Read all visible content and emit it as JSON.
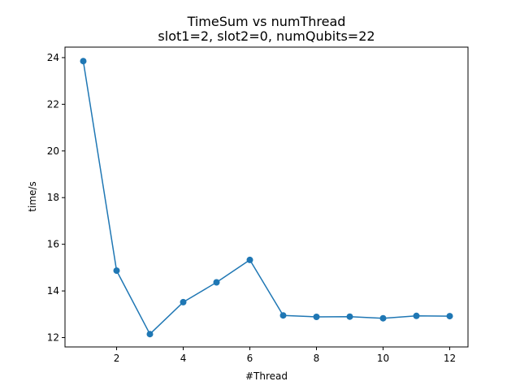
{
  "chart_data": {
    "type": "line",
    "title": "TimeSum vs numThread",
    "subtitle": "slot1=2, slot2=0, numQubits=22",
    "xlabel": "#Thread",
    "ylabel": "time/s",
    "xlim": [
      0.45,
      12.55
    ],
    "ylim": [
      11.6,
      24.45
    ],
    "xticks": [
      2,
      4,
      6,
      8,
      10,
      12
    ],
    "yticks": [
      12,
      14,
      16,
      18,
      20,
      22,
      24
    ],
    "grid": false,
    "marker": "circle",
    "color": "#1f77b4",
    "series": [
      {
        "x": [
          1,
          2,
          3,
          4,
          5,
          6,
          7,
          8,
          9,
          10,
          11,
          12
        ],
        "y": [
          23.85,
          14.87,
          12.15,
          13.52,
          14.37,
          15.33,
          12.95,
          12.89,
          12.9,
          12.83,
          12.93,
          12.92
        ]
      }
    ]
  }
}
